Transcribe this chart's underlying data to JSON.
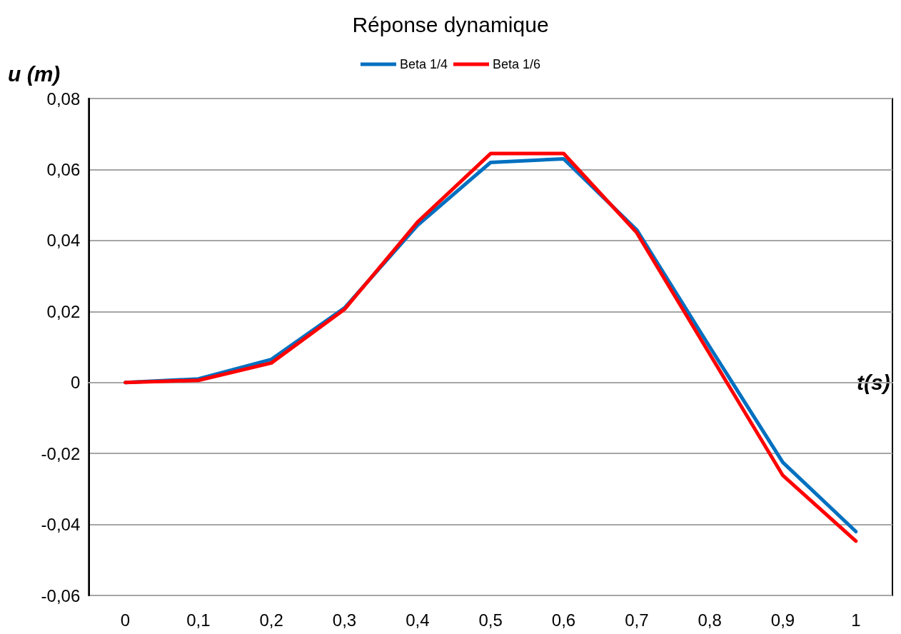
{
  "chart_data": {
    "type": "line",
    "title": "Réponse dynamique",
    "xlabel": "t(s)",
    "ylabel": "u (m)",
    "categories": [
      "0",
      "0,1",
      "0,2",
      "0,3",
      "0,4",
      "0,5",
      "0,6",
      "0,7",
      "0,8",
      "0,9",
      "1"
    ],
    "series": [
      {
        "name": "Beta 1/4",
        "color": "#0070c0",
        "values": [
          0,
          0.001,
          0.0065,
          0.021,
          0.0443,
          0.062,
          0.063,
          0.043,
          0.01,
          -0.0225,
          -0.042
        ]
      },
      {
        "name": "Beta 1/6",
        "color": "#ff0000",
        "values": [
          0,
          0.0006,
          0.0055,
          0.0206,
          0.0452,
          0.0645,
          0.0645,
          0.0422,
          0.008,
          -0.0262,
          -0.0447
        ]
      }
    ],
    "ylim": [
      -0.06,
      0.08
    ],
    "yticks": [
      {
        "value": -0.06,
        "label": "-0,06"
      },
      {
        "value": -0.04,
        "label": "-0,04"
      },
      {
        "value": -0.02,
        "label": "-0,02"
      },
      {
        "value": 0,
        "label": "0"
      },
      {
        "value": 0.02,
        "label": "0,02"
      },
      {
        "value": 0.04,
        "label": "0,04"
      },
      {
        "value": 0.06,
        "label": "0,06"
      },
      {
        "value": 0.08,
        "label": "0,08"
      }
    ],
    "grid": "y",
    "legend": "top",
    "marker": "none",
    "line_style": "solid"
  }
}
